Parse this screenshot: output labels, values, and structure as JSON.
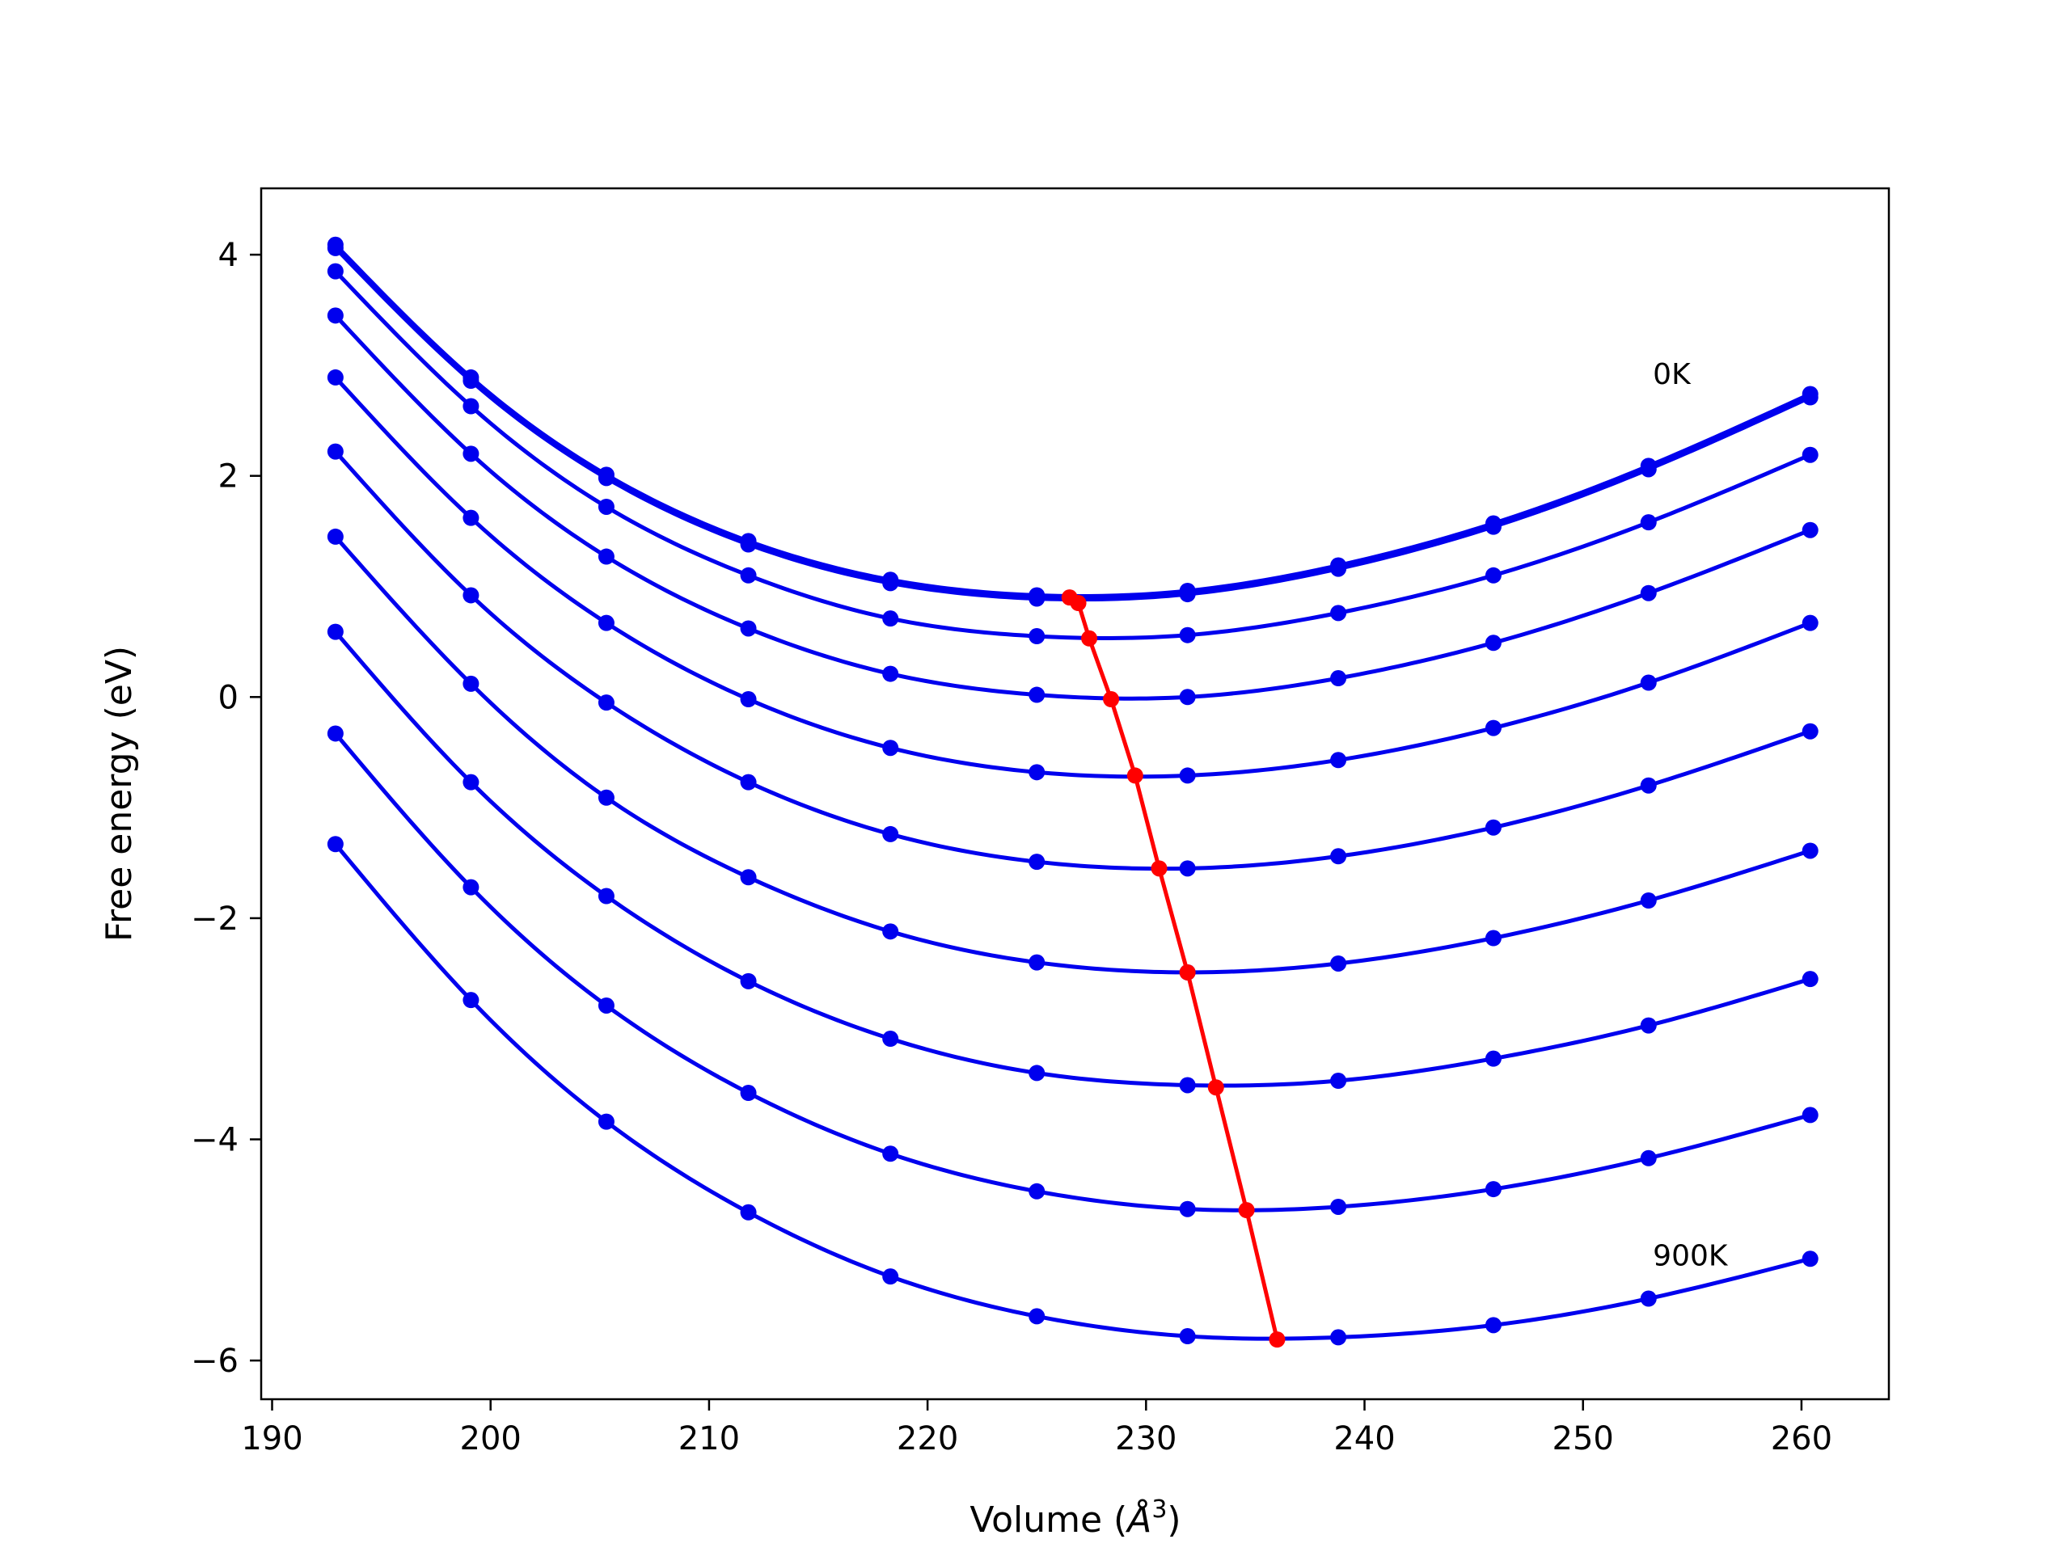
{
  "chart_data": {
    "type": "line",
    "title": "",
    "xlabel": "Volume (",
    "xlabel_symbol": "Å",
    "xlabel_exp": "3",
    "xlabel_end": ")",
    "ylabel": "Free energy (eV)",
    "xlim": [
      189.5,
      264
    ],
    "ylim": [
      -6.35,
      4.6
    ],
    "x_ticks": [
      190,
      200,
      210,
      220,
      230,
      240,
      250,
      260
    ],
    "x_tick_labels": [
      "190",
      "200",
      "210",
      "220",
      "230",
      "240",
      "250",
      "260"
    ],
    "y_ticks": [
      -6,
      -4,
      -2,
      0,
      2,
      4
    ],
    "y_tick_labels": [
      "−6",
      "−4",
      "−2",
      "0",
      "2",
      "4"
    ],
    "grid": false,
    "x": [
      192.9,
      199.1,
      205.3,
      211.8,
      218.3,
      225.0,
      231.9,
      238.8,
      245.9,
      253.0,
      260.4
    ],
    "series": [
      {
        "values": [
          4.09,
          2.89,
          2.01,
          1.41,
          1.06,
          0.92,
          0.96,
          1.19,
          1.57,
          2.09,
          2.74
        ]
      },
      {
        "values": [
          4.06,
          2.86,
          1.98,
          1.38,
          1.03,
          0.89,
          0.93,
          1.16,
          1.54,
          2.06,
          2.71
        ]
      },
      {
        "values": [
          3.85,
          2.63,
          1.72,
          1.1,
          0.71,
          0.55,
          0.56,
          0.76,
          1.1,
          1.58,
          2.19
        ]
      },
      {
        "values": [
          3.45,
          2.2,
          1.27,
          0.62,
          0.21,
          0.02,
          0.0,
          0.17,
          0.49,
          0.94,
          1.51
        ]
      },
      {
        "values": [
          2.89,
          1.62,
          0.67,
          -0.02,
          -0.46,
          -0.68,
          -0.71,
          -0.57,
          -0.28,
          0.13,
          0.67
        ]
      },
      {
        "values": [
          2.22,
          0.92,
          -0.05,
          -0.77,
          -1.24,
          -1.49,
          -1.55,
          -1.44,
          -1.18,
          -0.8,
          -0.31
        ]
      },
      {
        "values": [
          1.45,
          0.12,
          -0.91,
          -1.63,
          -2.12,
          -2.4,
          -2.49,
          -2.41,
          -2.18,
          -1.84,
          -1.39
        ]
      },
      {
        "values": [
          0.59,
          -0.77,
          -1.8,
          -2.57,
          -3.09,
          -3.4,
          -3.51,
          -3.47,
          -3.27,
          -2.97,
          -2.55
        ]
      },
      {
        "values": [
          -0.33,
          -1.72,
          -2.79,
          -3.58,
          -4.13,
          -4.47,
          -4.63,
          -4.61,
          -4.45,
          -4.17,
          -3.78
        ]
      },
      {
        "values": [
          -1.33,
          -2.74,
          -3.84,
          -4.66,
          -5.24,
          -5.6,
          -5.78,
          -5.79,
          -5.68,
          -5.44,
          -5.08
        ]
      }
    ],
    "minima": {
      "x": [
        226.5,
        226.9,
        227.4,
        228.4,
        229.5,
        230.6,
        231.9,
        233.2,
        234.6,
        236.0
      ],
      "y": [
        0.9,
        0.85,
        0.53,
        -0.02,
        -0.71,
        -1.55,
        -2.49,
        -3.53,
        -4.64,
        -5.81
      ]
    },
    "series_color": "#0000ee",
    "minima_color": "#ff0000",
    "annotations": [
      {
        "text": "0K",
        "x": 253.2,
        "y": 2.83
      },
      {
        "text": "900K",
        "x": 253.2,
        "y": -5.14
      }
    ]
  }
}
